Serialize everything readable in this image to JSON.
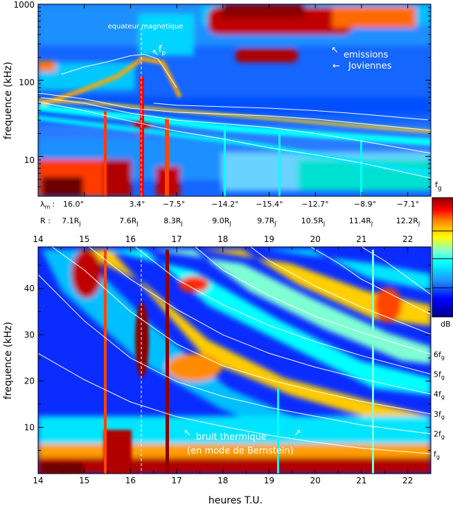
{
  "chart_data": [
    {
      "type": "heatmap",
      "ylabel": "frequence (kHz)",
      "yscale": "log",
      "ylim": [
        3,
        1000
      ],
      "xlim": [
        14,
        22.5
      ],
      "yticks": [
        "1000",
        "100",
        "10"
      ],
      "grid": false,
      "annotations": {
        "equator": "equateur magnetique",
        "fp": "f",
        "fp_sub": "p",
        "jov1": "emissions",
        "jov2": "Joviennes",
        "arrow": "←",
        "arrow2": "↖"
      },
      "cyclotron_harmonics": [
        {
          "n": 1,
          "x": [
            14,
            15,
            16,
            17,
            18,
            19,
            20,
            21,
            22.5
          ],
          "y": [
            52,
            40,
            29,
            21.5,
            17,
            13,
            10.5,
            8.2,
            5.2
          ]
        },
        {
          "n": 2,
          "x": [
            14,
            15,
            16,
            17,
            18,
            19,
            20,
            21,
            22.5
          ],
          "y": [
            60,
            50,
            37,
            30,
            27,
            24,
            20,
            16,
            11
          ]
        },
        {
          "n": 3,
          "x": [
            14,
            15,
            16,
            17,
            18,
            19,
            20,
            21,
            22.5
          ],
          "y": [
            68,
            57,
            43,
            38,
            36,
            34,
            31,
            27,
            22
          ]
        },
        {
          "n": 4,
          "x": [
            16.5,
            17,
            18,
            19,
            20,
            21,
            22.5
          ],
          "y": [
            50,
            47,
            45,
            43,
            40,
            36,
            30
          ]
        }
      ],
      "plasma_freq": {
        "x": [
          14.5,
          15,
          15.5,
          16,
          16.3,
          16.6,
          17
        ],
        "y": [
          120,
          150,
          175,
          210,
          220,
          190,
          80
        ]
      }
    },
    {
      "type": "heatmap",
      "ylabel": "frequence (kHz)",
      "xlabel": "heures T.U.",
      "ylim": [
        0,
        49
      ],
      "xlim": [
        14,
        22.5
      ],
      "yticks": [
        "10",
        "20",
        "30",
        "40"
      ],
      "xticks": [
        "14",
        "15",
        "16",
        "17",
        "18",
        "19",
        "20",
        "21",
        "22"
      ],
      "grid": false,
      "annotations": {
        "thermal1": "bruit thermique",
        "thermal2": "(en mode de Bernstein)",
        "arrow": "↖",
        "arrow2": "↗"
      },
      "cyclotron_harmonics": [
        {
          "n": 1,
          "x": [
            14,
            15,
            16,
            17,
            18,
            19,
            20,
            21,
            22.5
          ],
          "y": [
            26,
            20.3,
            15.5,
            12.3,
            10.2,
            8.3,
            6.8,
            5.5,
            4.3
          ]
        },
        {
          "n": 2,
          "x": [
            14,
            15,
            16,
            17,
            18,
            19,
            20,
            21,
            22.5
          ],
          "y": [
            43,
            33,
            25,
            19.9,
            16.7,
            14.3,
            12.4,
            10.5,
            8.6
          ]
        },
        {
          "n": 3,
          "x": [
            14.3,
            15,
            16,
            17,
            18,
            19,
            20,
            21,
            22.5
          ],
          "y": [
            49,
            44,
            35,
            28,
            23.3,
            20.3,
            17.8,
            15.6,
            12.9
          ]
        },
        {
          "n": 4,
          "x": [
            15.1,
            16,
            17,
            18,
            19,
            20,
            21,
            22.5
          ],
          "y": [
            49,
            42,
            35.5,
            30,
            26,
            23,
            20.5,
            17.2
          ]
        },
        {
          "n": 5,
          "x": [
            16.1,
            17,
            18,
            19,
            20,
            21,
            22.5
          ],
          "y": [
            49,
            42,
            36.5,
            32,
            28.5,
            25.5,
            21.5
          ]
        },
        {
          "n": 6,
          "x": [
            17.4,
            18,
            19,
            20,
            21,
            22.5
          ],
          "y": [
            49,
            44,
            38.5,
            34,
            30.5,
            25.8
          ]
        },
        {
          "n": 7,
          "x": [
            18.6,
            19,
            20,
            21,
            22.5
          ],
          "y": [
            49,
            46,
            40.5,
            36,
            30.1
          ]
        },
        {
          "n": 8,
          "x": [
            19.9,
            20.5,
            21,
            22.5
          ],
          "y": [
            49,
            45.5,
            42,
            34.4
          ]
        },
        {
          "n": 9,
          "x": [
            21.0,
            21.5,
            22.5
          ],
          "y": [
            49,
            46,
            38.7
          ]
        }
      ],
      "harmonic_labels": [
        "f",
        "2f",
        "3f",
        "4f",
        "5f",
        "6f"
      ],
      "harmonic_label_sub": "g"
    }
  ],
  "info": {
    "lat_symbol": "λ",
    "lat_sub": "m",
    "colon": ":",
    "lat_values": [
      "16.0°",
      "3.4°",
      "−7.5°",
      "−14.2°",
      "−15.4°",
      "−12.7°",
      "−8.9°",
      "−7.1°"
    ],
    "r_label": "R",
    "r_colon": ":",
    "r_values": [
      "7.1",
      "7.6",
      "8.3",
      "9.0",
      "9.7",
      "10.5",
      "11.4",
      "12.2"
    ],
    "r_unit": "R",
    "r_unit_sub": "J",
    "top_hours": [
      "14",
      "15",
      "16",
      "17",
      "18",
      "19",
      "20",
      "21",
      "22"
    ]
  },
  "colorbar": {
    "label_top": "f",
    "label_top_sub": "g",
    "label_bottom": "dB",
    "colors": [
      "#00008b",
      "#0000ff",
      "#1e90ff",
      "#00ffff",
      "#7fffd4",
      "#ffff00",
      "#ff8c00",
      "#ff0000",
      "#8b0000"
    ]
  }
}
